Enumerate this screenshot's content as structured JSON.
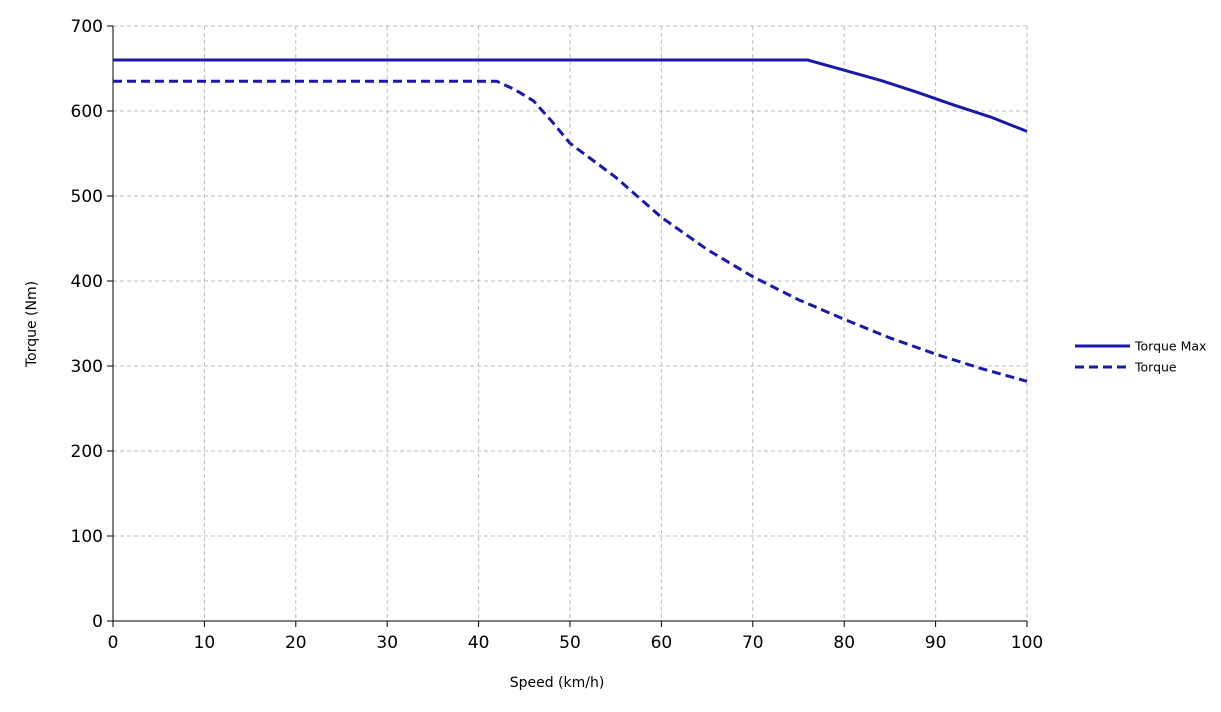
{
  "chart_data": {
    "type": "line",
    "xlabel": "Speed (km/h)",
    "ylabel": "Torque (Nm)",
    "xlim": [
      0,
      100
    ],
    "ylim": [
      0,
      700
    ],
    "xticks": [
      0,
      10,
      20,
      30,
      40,
      50,
      60,
      70,
      80,
      90,
      100
    ],
    "yticks": [
      0,
      100,
      200,
      300,
      400,
      500,
      600,
      700
    ],
    "grid": true,
    "legend_position": "right",
    "series": [
      {
        "name": "Torque Max",
        "style": "solid",
        "color": "#1a1aa6",
        "points": [
          [
            0,
            660
          ],
          [
            10,
            660
          ],
          [
            20,
            660
          ],
          [
            30,
            660
          ],
          [
            40,
            660
          ],
          [
            50,
            660
          ],
          [
            60,
            660
          ],
          [
            70,
            660
          ],
          [
            76,
            660
          ],
          [
            80,
            648
          ],
          [
            84,
            636
          ],
          [
            88,
            622
          ],
          [
            92,
            607
          ],
          [
            96,
            593
          ],
          [
            100,
            576
          ]
        ]
      },
      {
        "name": "Torque",
        "style": "dashed",
        "color": "#1a1aa6",
        "points": [
          [
            0,
            635
          ],
          [
            10,
            635
          ],
          [
            20,
            635
          ],
          [
            30,
            635
          ],
          [
            40,
            635
          ],
          [
            42,
            635
          ],
          [
            44,
            625
          ],
          [
            46,
            612
          ],
          [
            48,
            588
          ],
          [
            50,
            562
          ],
          [
            55,
            522
          ],
          [
            60,
            475
          ],
          [
            65,
            437
          ],
          [
            70,
            405
          ],
          [
            75,
            378
          ],
          [
            80,
            355
          ],
          [
            85,
            333
          ],
          [
            90,
            314
          ],
          [
            95,
            297
          ],
          [
            100,
            282
          ]
        ]
      }
    ]
  }
}
